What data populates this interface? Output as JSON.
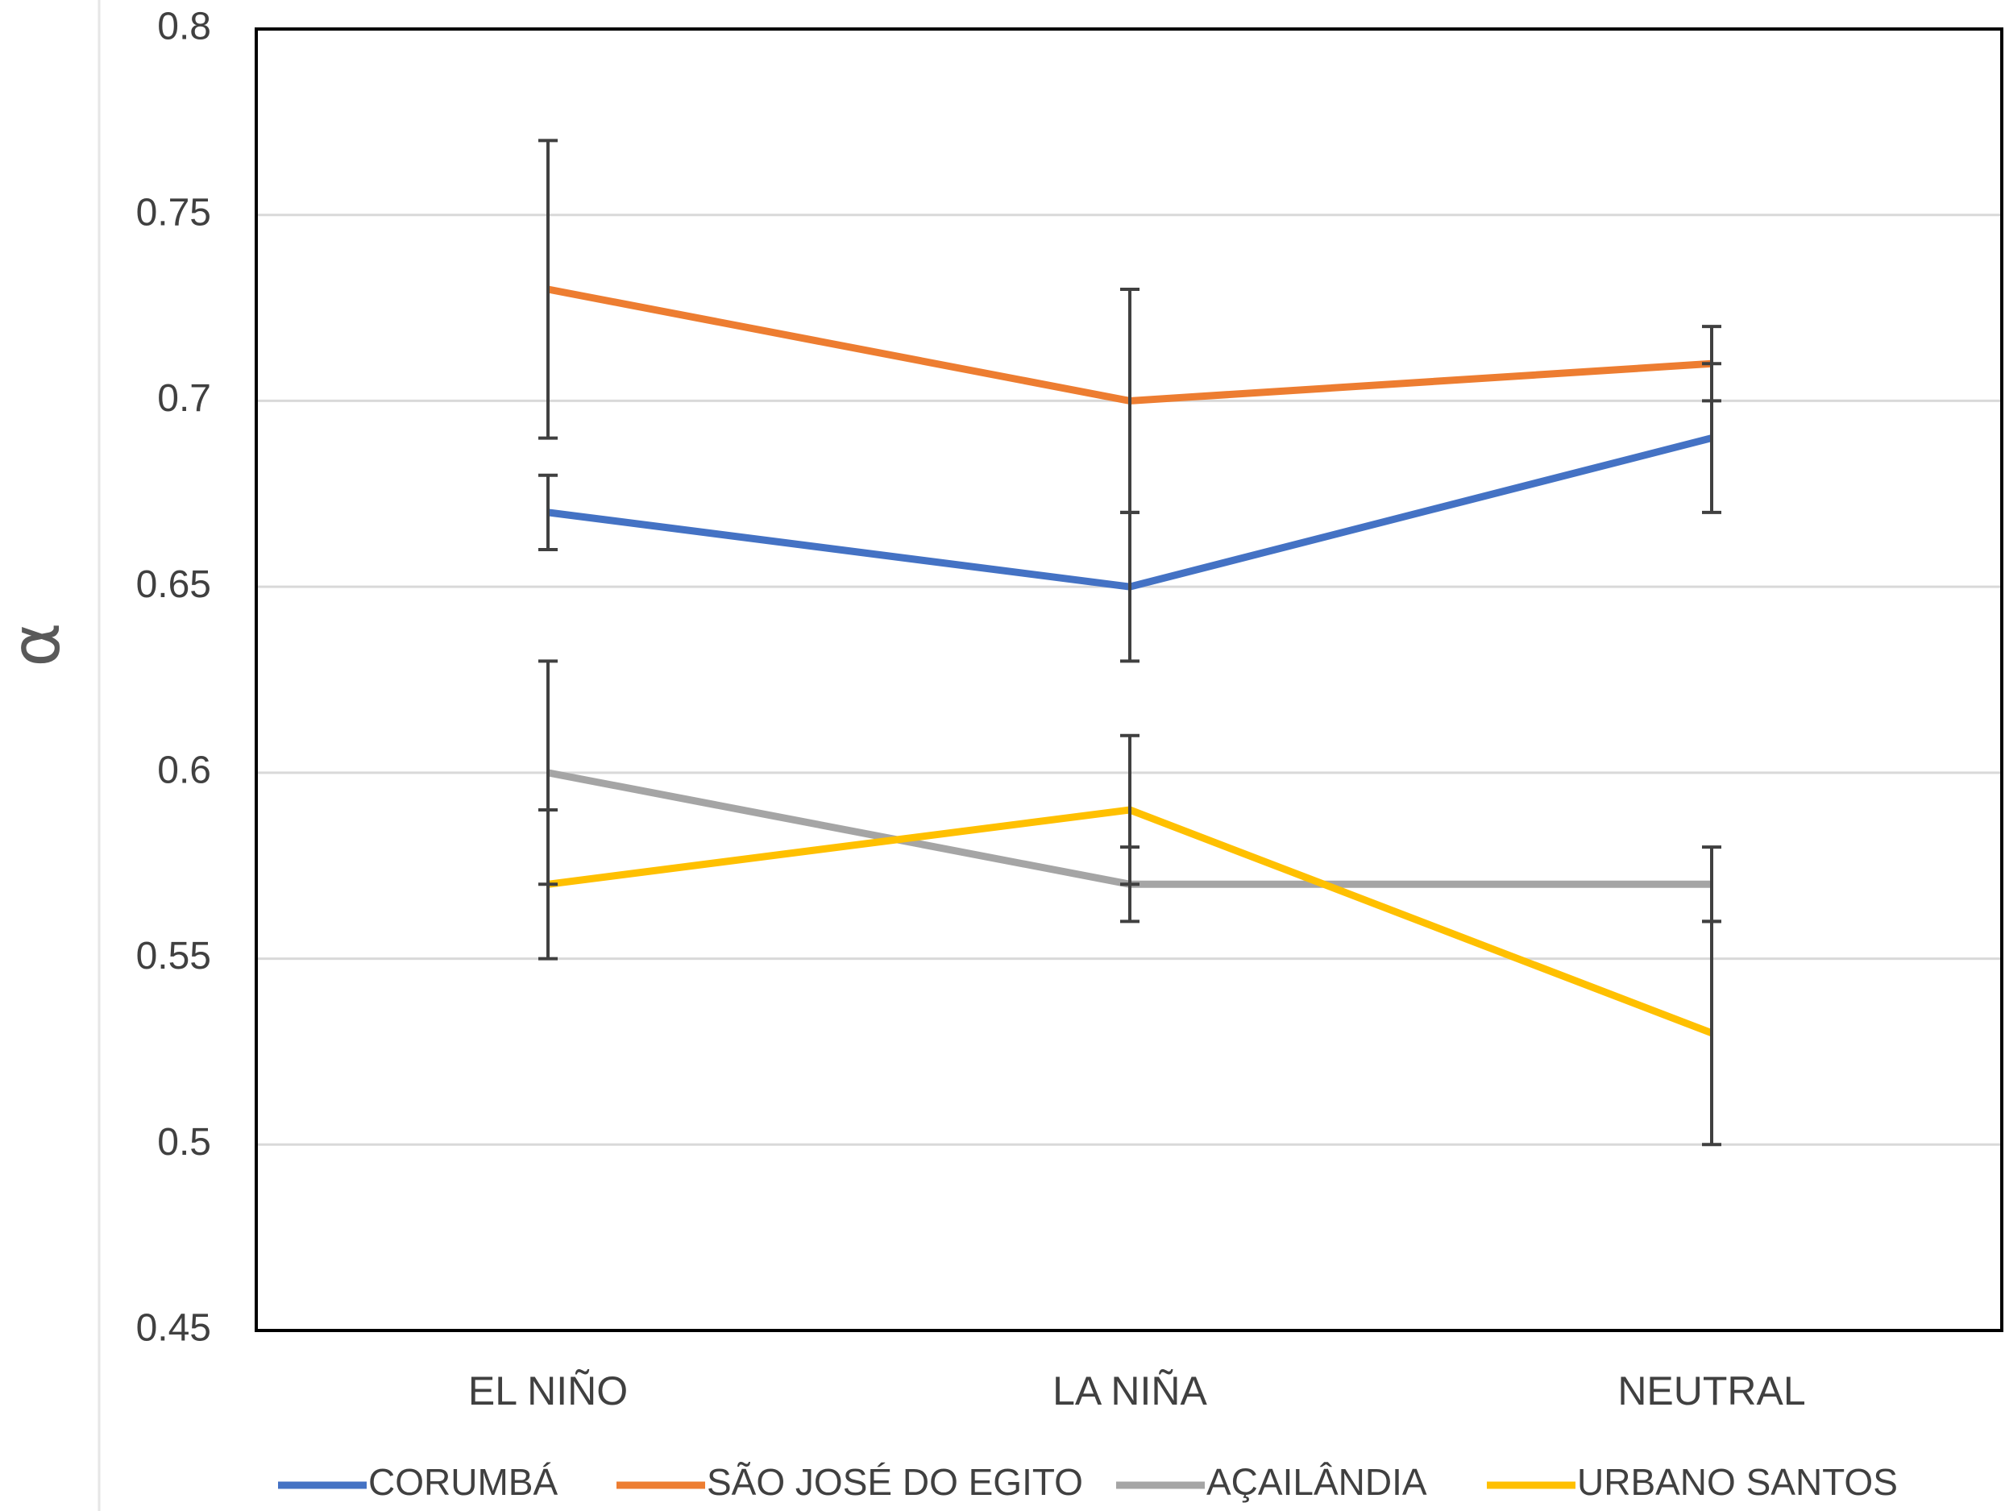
{
  "chart_data": {
    "type": "line",
    "title": "",
    "xlabel": "",
    "ylabel": "α",
    "categories": [
      "EL NIÑO",
      "LA NIÑA",
      "NEUTRAL"
    ],
    "ylim": [
      0.45,
      0.8
    ],
    "yticks": [
      "0.8",
      "0.75",
      "0.7",
      "0.65",
      "0.6",
      "0.55",
      "0.5",
      "0.45"
    ],
    "ytick_values": [
      0.8,
      0.75,
      0.7,
      0.65,
      0.6,
      0.55,
      0.5,
      0.45
    ],
    "grid": true,
    "legend_position": "bottom",
    "series": [
      {
        "name": "CORUMBÁ",
        "color": "#4472C4",
        "values": [
          0.67,
          0.65,
          0.69
        ],
        "errors": [
          0.01,
          0.02,
          0.02
        ]
      },
      {
        "name": "SÃO JOSÉ DO EGITO",
        "color": "#ED7D31",
        "values": [
          0.73,
          0.7,
          0.71
        ],
        "errors": [
          0.04,
          0.03,
          0.01
        ]
      },
      {
        "name": "AÇAILÂNDIA",
        "color": "#A5A5A5",
        "values": [
          0.6,
          0.57,
          0.57
        ],
        "errors": [
          0.03,
          0.01,
          0.01
        ]
      },
      {
        "name": "URBANO SANTOS",
        "color": "#FFC000",
        "values": [
          0.57,
          0.59,
          0.53
        ],
        "errors": [
          0.02,
          0.02,
          0.03
        ]
      }
    ]
  }
}
